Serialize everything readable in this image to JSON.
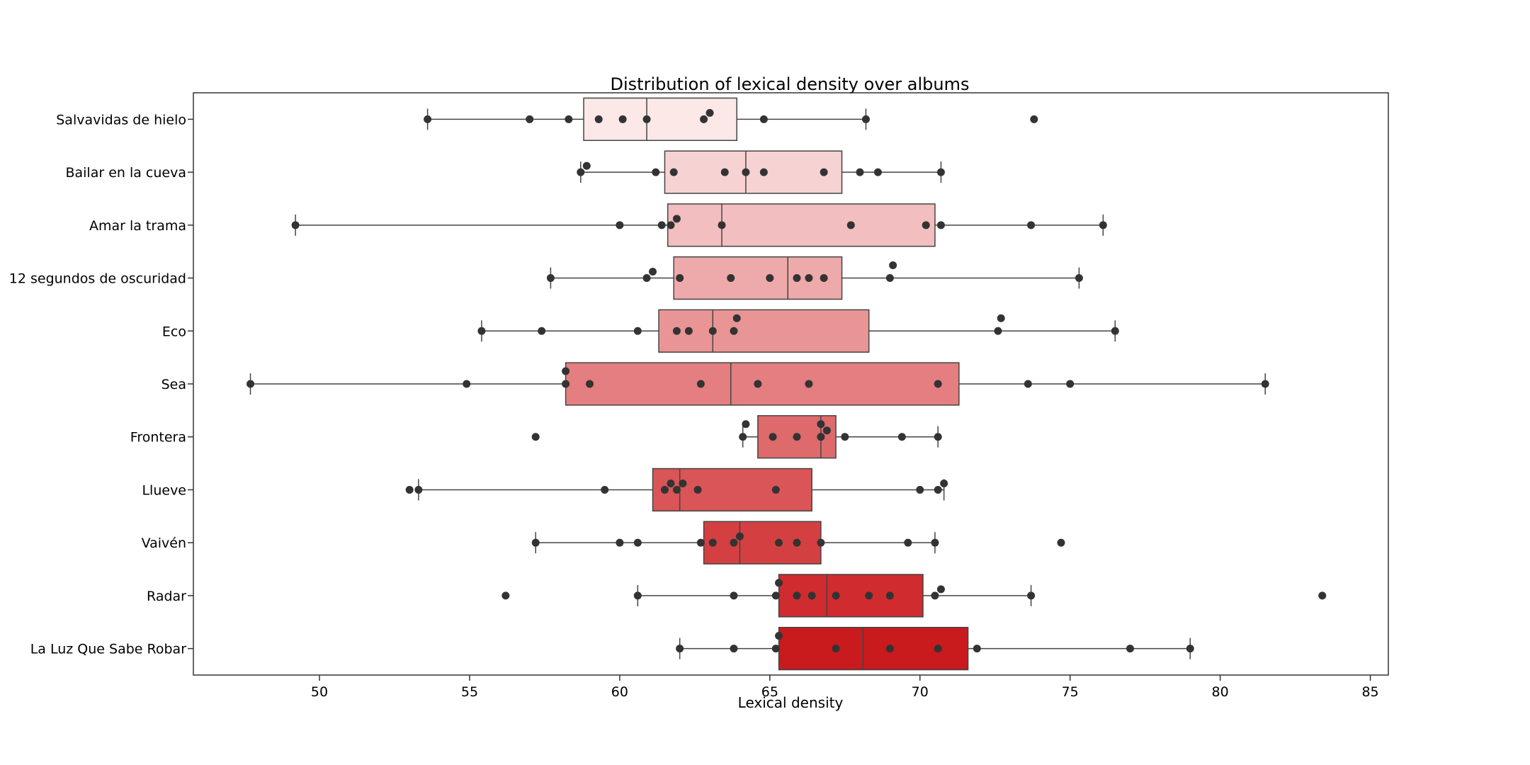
{
  "chart_data": {
    "type": "box",
    "title": "Distribution of lexical density over albums",
    "xlabel": "Lexical density",
    "ylabel": "",
    "xlim": [
      45.8,
      85.6
    ],
    "xticks": [
      50,
      55,
      60,
      65,
      70,
      75,
      80,
      85
    ],
    "grid": false,
    "categories": [
      "Salvavidas de hielo",
      "Bailar en la cueva",
      "Amar la trama",
      "12 segundos de oscuridad",
      "Eco",
      "Sea",
      "Frontera",
      "Llueve",
      "Vaivén",
      "Radar",
      "La Luz Que Sabe Robar"
    ],
    "colors": [
      "#fde8e8",
      "#f7d2d2",
      "#f3bebf",
      "#eea9aa",
      "#e99596",
      "#e47e80",
      "#de6a6c",
      "#d95557",
      "#d44042",
      "#d02b2e",
      "#c91a1d"
    ],
    "boxes": [
      {
        "q1": 58.8,
        "median": 60.9,
        "q3": 63.9,
        "whisker_low": 53.6,
        "whisker_high": 68.2,
        "outliers": [
          73.8
        ]
      },
      {
        "q1": 61.5,
        "median": 64.2,
        "q3": 67.4,
        "whisker_low": 58.7,
        "whisker_high": 70.7,
        "outliers": []
      },
      {
        "q1": 61.6,
        "median": 63.4,
        "q3": 70.5,
        "whisker_low": 49.2,
        "whisker_high": 76.1,
        "outliers": []
      },
      {
        "q1": 61.8,
        "median": 65.6,
        "q3": 67.4,
        "whisker_low": 57.7,
        "whisker_high": 75.3,
        "outliers": []
      },
      {
        "q1": 61.3,
        "median": 63.1,
        "q3": 68.3,
        "whisker_low": 55.4,
        "whisker_high": 76.5,
        "outliers": []
      },
      {
        "q1": 58.2,
        "median": 63.7,
        "q3": 71.3,
        "whisker_low": 47.7,
        "whisker_high": 81.5,
        "outliers": []
      },
      {
        "q1": 64.6,
        "median": 66.7,
        "q3": 67.2,
        "whisker_low": 64.1,
        "whisker_high": 70.6,
        "outliers": [
          57.2
        ]
      },
      {
        "q1": 61.1,
        "median": 62.0,
        "q3": 66.4,
        "whisker_low": 53.3,
        "whisker_high": 70.8,
        "outliers": [
          53.0
        ]
      },
      {
        "q1": 62.8,
        "median": 64.0,
        "q3": 66.7,
        "whisker_low": 57.2,
        "whisker_high": 70.5,
        "outliers": [
          74.7
        ]
      },
      {
        "q1": 65.3,
        "median": 66.9,
        "q3": 70.1,
        "whisker_low": 60.6,
        "whisker_high": 73.7,
        "outliers": [
          56.2,
          83.4
        ]
      },
      {
        "q1": 65.3,
        "median": 68.1,
        "q3": 71.6,
        "whisker_low": 62.0,
        "whisker_high": 79.0,
        "outliers": []
      }
    ],
    "points": [
      [
        53.6,
        57.0,
        58.3,
        59.3,
        60.1,
        60.9,
        62.8,
        63.0,
        64.8,
        68.2,
        73.8
      ],
      [
        58.7,
        58.9,
        61.2,
        61.8,
        63.5,
        64.2,
        64.8,
        66.8,
        68.0,
        68.6,
        70.7
      ],
      [
        49.2,
        60.0,
        61.4,
        61.7,
        61.9,
        63.4,
        67.7,
        70.2,
        70.7,
        73.7,
        76.1
      ],
      [
        57.7,
        60.9,
        61.1,
        62.0,
        63.7,
        65.0,
        65.9,
        66.3,
        66.8,
        69.0,
        69.1,
        75.3
      ],
      [
        55.4,
        57.4,
        60.6,
        61.9,
        62.3,
        63.1,
        63.8,
        63.9,
        72.6,
        72.7,
        76.5
      ],
      [
        47.7,
        54.9,
        58.2,
        58.2,
        59.0,
        62.7,
        64.6,
        66.3,
        70.6,
        73.6,
        75.0,
        81.5
      ],
      [
        57.2,
        64.1,
        64.2,
        65.1,
        65.9,
        66.7,
        66.7,
        66.9,
        67.5,
        69.4,
        70.6
      ],
      [
        53.0,
        53.3,
        59.5,
        61.5,
        61.7,
        61.9,
        62.1,
        62.6,
        65.2,
        70.0,
        70.6,
        70.8
      ],
      [
        57.2,
        60.0,
        60.6,
        62.7,
        63.1,
        63.8,
        64.0,
        65.3,
        65.9,
        66.7,
        69.6,
        70.5,
        74.7
      ],
      [
        56.2,
        60.6,
        63.8,
        65.2,
        65.3,
        65.9,
        66.4,
        67.2,
        68.3,
        69.0,
        70.5,
        70.7,
        73.7,
        83.4
      ],
      [
        62.0,
        63.8,
        65.2,
        65.3,
        67.2,
        69.0,
        70.6,
        71.9,
        77.0,
        79.0
      ]
    ]
  }
}
